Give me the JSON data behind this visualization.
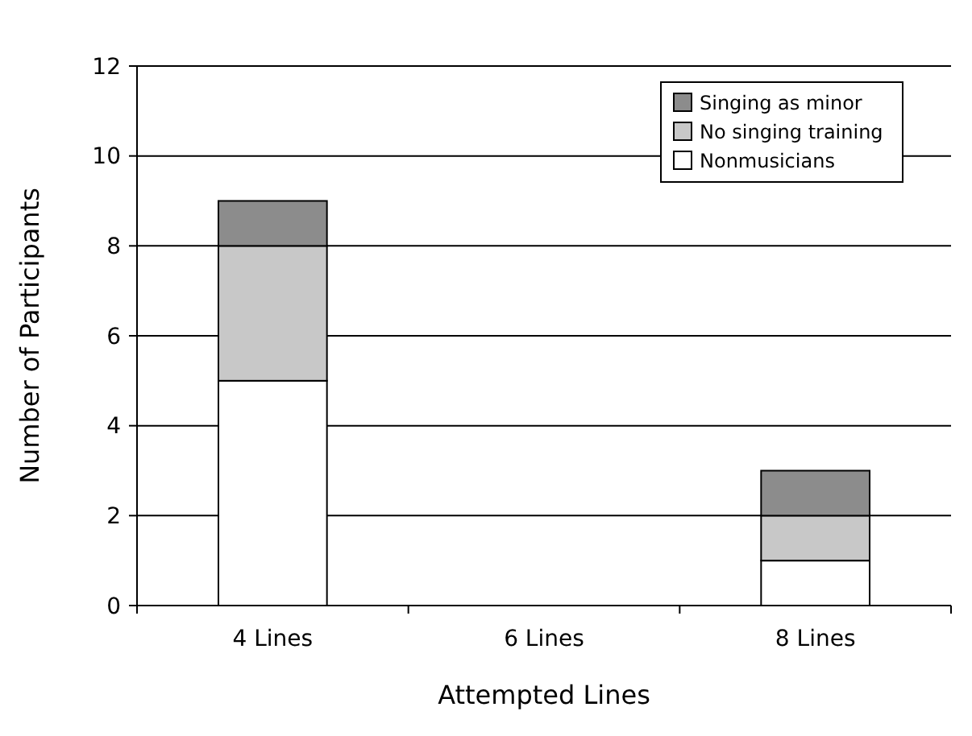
{
  "chart_data": {
    "type": "bar",
    "xlabel": "Attempted Lines",
    "ylabel": "Number of Participants",
    "categories": [
      "4 Lines",
      "6 Lines",
      "8 Lines"
    ],
    "stacked": true,
    "series": [
      {
        "name": "Nonmusicians",
        "color": "#ffffff",
        "values": [
          5,
          0,
          1
        ]
      },
      {
        "name": "No singing training",
        "color": "#c8c8c8",
        "values": [
          3,
          0,
          1
        ]
      },
      {
        "name": "Singing as minor",
        "color": "#8c8c8c",
        "values": [
          1,
          0,
          1
        ]
      }
    ],
    "ylim": [
      0,
      12
    ],
    "yticks": [
      0,
      2,
      4,
      6,
      8,
      10,
      12
    ],
    "grid": "y",
    "legend": "top right"
  }
}
